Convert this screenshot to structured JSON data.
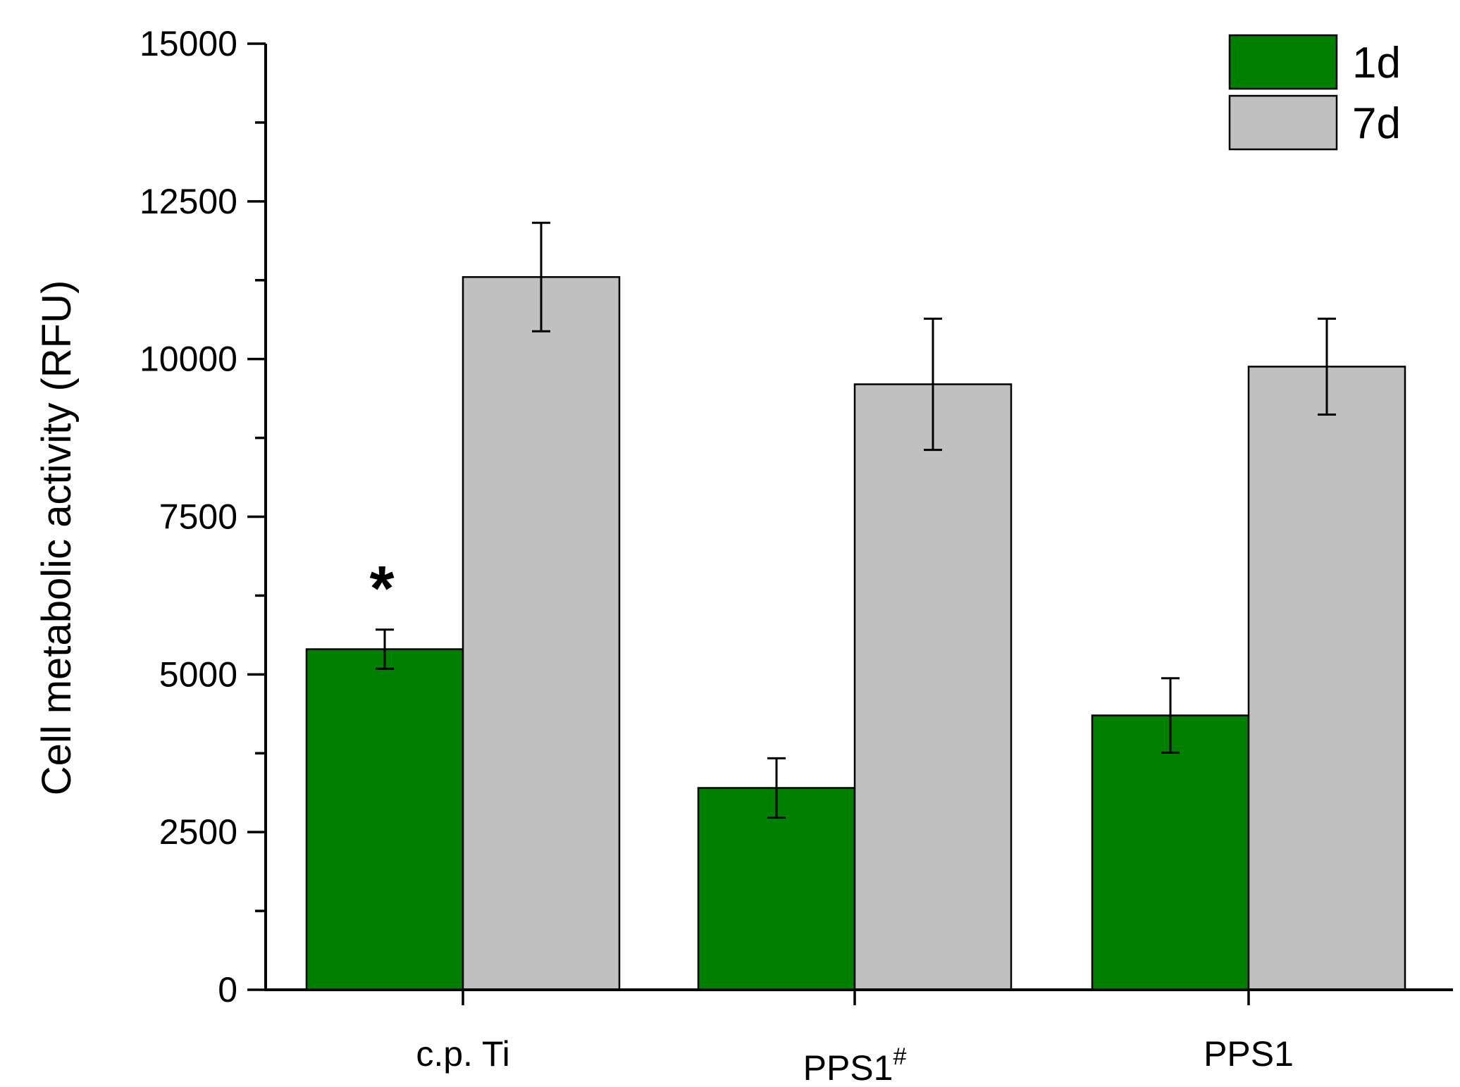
{
  "chart_data": {
    "type": "bar",
    "categories": [
      "c.p. Ti",
      "PPS1#",
      "PPS1"
    ],
    "category_labels": [
      {
        "base": "c.p. Ti",
        "sup": ""
      },
      {
        "base": "PPS1",
        "sup": "#"
      },
      {
        "base": "PPS1",
        "sup": ""
      }
    ],
    "series": [
      {
        "name": "1d",
        "color": "#008000",
        "values": [
          5400,
          3200,
          4350
        ],
        "errors": [
          310,
          470,
          590
        ]
      },
      {
        "name": "7d",
        "color": "#c0c0c0",
        "values": [
          11300,
          9600,
          9880
        ],
        "errors": [
          860,
          1040,
          760
        ]
      }
    ],
    "title": "",
    "xlabel": "",
    "ylabel": "Cell metabolic activity (RFU)",
    "ylim": [
      0,
      15000
    ],
    "yticks": [
      0,
      2500,
      5000,
      7500,
      10000,
      12500,
      15000
    ],
    "ytick_labels": [
      "0",
      "2500",
      "5000",
      "7500",
      "10000",
      "12500",
      "15000"
    ],
    "minor_ytick_step": 1250,
    "grid": false,
    "legend_position": "top-right",
    "annotations": [
      {
        "text": "*",
        "category_index": 0,
        "series_index": 0
      }
    ]
  }
}
